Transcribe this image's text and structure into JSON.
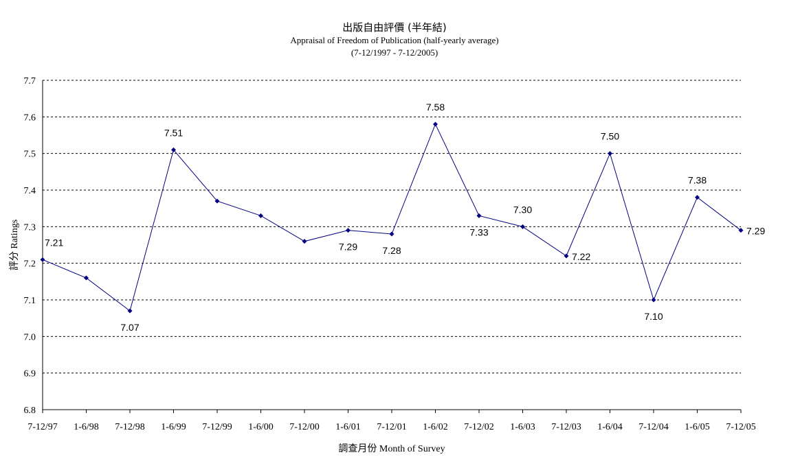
{
  "chart_data": {
    "type": "line",
    "title": "出版自由評價 (半年結)",
    "subtitle": "Appraisal of Freedom of Publication (half-yearly average)",
    "period": "(7-12/1997 - 7-12/2005)",
    "xlabel": "調查月份 Month of Survey",
    "ylabel": "評分 Ratings",
    "ylim": [
      6.8,
      7.7
    ],
    "yticks": [
      "7.7",
      "7.6",
      "7.5",
      "7.4",
      "7.3",
      "7.2",
      "7.1",
      "7.0",
      "6.9",
      "6.8"
    ],
    "grid": true,
    "categories": [
      "7-12/97",
      "1-6/98",
      "7-12/98",
      "1-6/99",
      "7-12/99",
      "1-6/00",
      "7-12/00",
      "1-6/01",
      "7-12/01",
      "1-6/02",
      "7-12/02",
      "1-6/03",
      "7-12/03",
      "1-6/04",
      "7-12/04",
      "1-6/05",
      "7-12/05"
    ],
    "values": [
      7.21,
      7.16,
      7.07,
      7.51,
      7.37,
      7.33,
      7.26,
      7.29,
      7.28,
      7.58,
      7.33,
      7.3,
      7.22,
      7.5,
      7.1,
      7.38,
      7.29
    ],
    "data_labels": [
      "7.21",
      "",
      "7.07",
      "7.51",
      "",
      "",
      "",
      "7.29",
      "7.28",
      "7.58",
      "7.33",
      "7.30",
      "7.22",
      "7.50",
      "7.10",
      "7.38",
      "7.29"
    ],
    "line_color": "#000080",
    "marker_color": "#000080"
  }
}
